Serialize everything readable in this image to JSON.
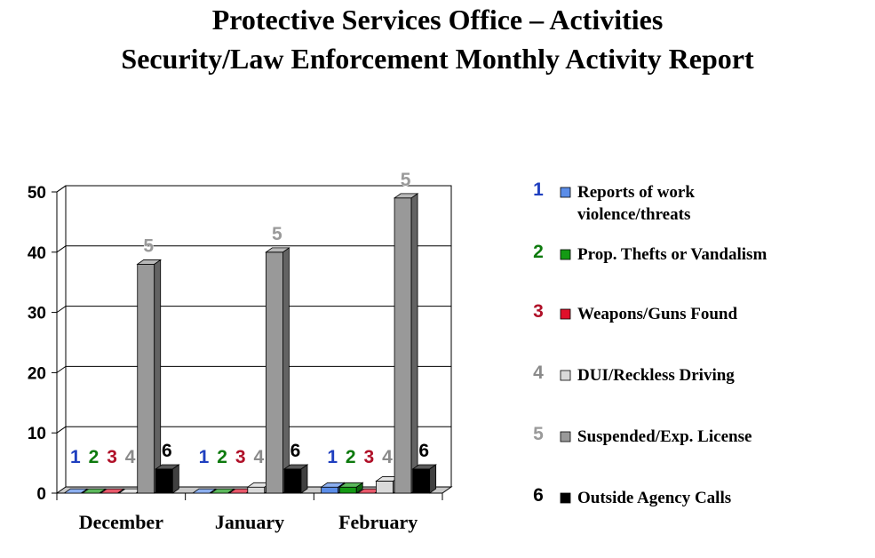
{
  "title_line1": "Protective Services Office – Activities",
  "title_line2": "Security/Law Enforcement Monthly Activity Report",
  "chart_data": {
    "type": "bar",
    "style": "3d-clustered",
    "title": "Protective Services Office – Activities / Security/Law Enforcement Monthly Activity Report",
    "categories": [
      "December",
      "January",
      "February"
    ],
    "ylim": [
      0,
      50
    ],
    "yticks": [
      0,
      10,
      20,
      30,
      40,
      50
    ],
    "grid": true,
    "legend_position": "right",
    "series": [
      {
        "id": "1",
        "name": "Reports of work violence/threats",
        "legend_lines": [
          "Reports of work",
          "violence/threats"
        ],
        "color": "#5b8de8",
        "label_color": "#1f3fbf",
        "values": [
          0,
          0,
          1
        ]
      },
      {
        "id": "2",
        "name": "Prop. Thefts or Vandalism",
        "legend_lines": [
          "Prop. Thefts or Vandalism"
        ],
        "color": "#149a14",
        "label_color": "#0d7a0d",
        "values": [
          0,
          0,
          1
        ]
      },
      {
        "id": "3",
        "name": "Weapons/Guns Found",
        "legend_lines": [
          "Weapons/Guns Found"
        ],
        "color": "#e0102a",
        "label_color": "#b01028",
        "values": [
          0,
          0,
          0
        ]
      },
      {
        "id": "4",
        "name": "DUI/Reckless Driving",
        "legend_lines": [
          "DUI/Reckless Driving"
        ],
        "color": "#d9d9d9",
        "label_color": "#8a8a8a",
        "values": [
          0,
          1,
          2
        ]
      },
      {
        "id": "5",
        "name": "Suspended/Exp. License",
        "legend_lines": [
          "Suspended/Exp. License"
        ],
        "color": "#999999",
        "label_color": "#9a9a9a",
        "values": [
          38,
          40,
          49
        ]
      },
      {
        "id": "6",
        "name": "Outside Agency Calls",
        "legend_lines": [
          "Outside Agency Calls"
        ],
        "color": "#000000",
        "label_color": "#000000",
        "values": [
          4,
          4,
          4
        ]
      }
    ],
    "data_labels": [
      [
        "1",
        "2",
        "3",
        "4",
        null,
        "6"
      ],
      [
        "1",
        "2",
        "3",
        "4",
        "5",
        "6"
      ],
      [
        "1",
        "2",
        "3",
        "4",
        "5",
        "6"
      ]
    ],
    "data_labels_override_first_5": "5"
  }
}
